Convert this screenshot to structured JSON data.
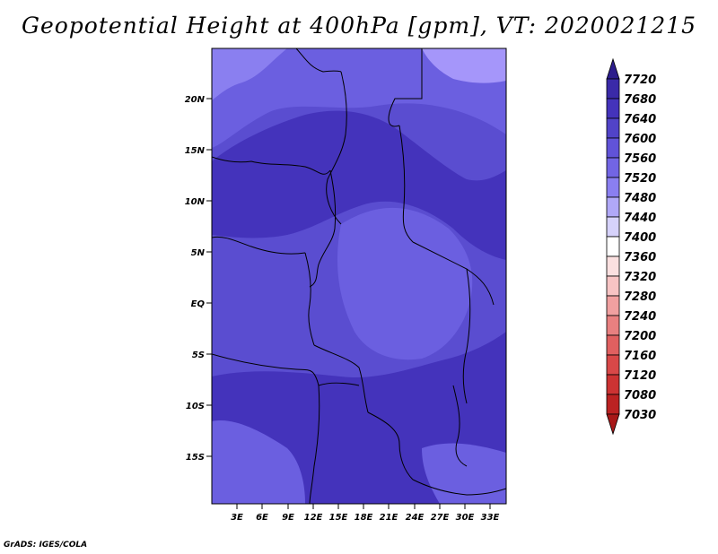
{
  "title": "Geopotential Height at 400hPa [gpm], VT: 2020021215",
  "footer": "GrADS: IGES/COLA",
  "palette": {
    "bg_deep": "#4433bb",
    "mid": "#5a4dd0",
    "light": "#6b5fe0",
    "lighter": "#8a7ff0",
    "lightest": "#a596fa"
  },
  "map": {
    "lon_ticks": [
      "3E",
      "6E",
      "9E",
      "12E",
      "15E",
      "18E",
      "21E",
      "24E",
      "27E",
      "30E",
      "33E"
    ],
    "lat_ticks": [
      "20N",
      "15N",
      "10N",
      "5N",
      "EQ",
      "5S",
      "10S",
      "15S"
    ]
  },
  "colorbar": {
    "labels": [
      "7720",
      "7680",
      "7640",
      "7600",
      "7560",
      "7520",
      "7480",
      "7440",
      "7400",
      "7360",
      "7320",
      "7280",
      "7240",
      "7200",
      "7160",
      "7120",
      "7080",
      "7030"
    ],
    "colors": [
      "#2c1d8c",
      "#3a2aa8",
      "#4433bb",
      "#5143c8",
      "#6153d8",
      "#7265e4",
      "#8a7ff0",
      "#b0a8f7",
      "#d6d2fb",
      "#ffffff",
      "#fbe0e0",
      "#f7c4c4",
      "#f0a0a0",
      "#e88080",
      "#e06060",
      "#d84848",
      "#cc3333",
      "#bb2222",
      "#a81818"
    ]
  }
}
